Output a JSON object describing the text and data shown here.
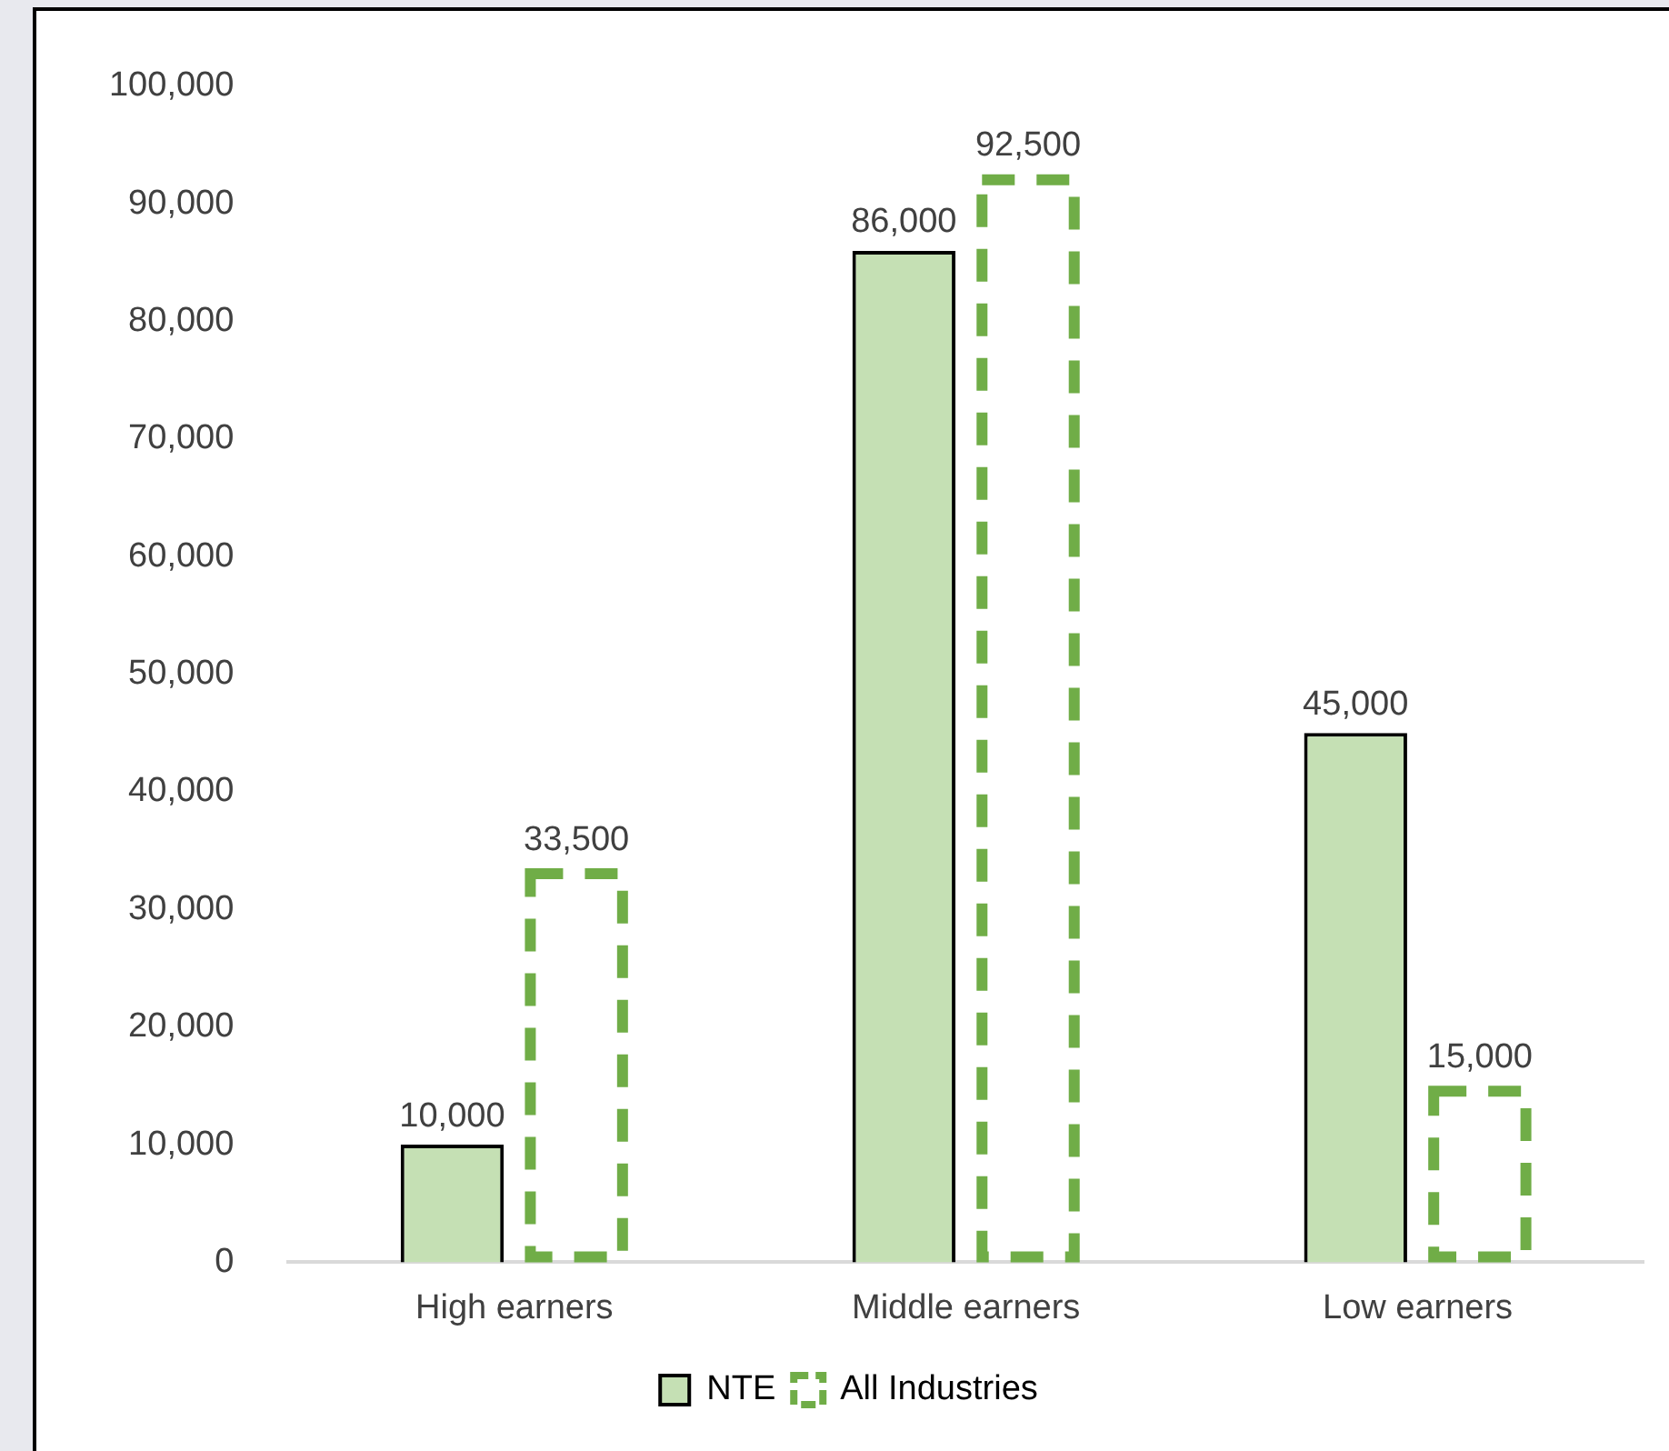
{
  "chart_data": {
    "type": "bar",
    "categories": [
      "High earners",
      "Middle earners",
      "Low earners"
    ],
    "series": [
      {
        "name": "NTE",
        "color": "#c5e0b4",
        "values": [
          10000,
          86000,
          45000
        ],
        "value_labels": [
          "10,000",
          "86,000",
          "45,000"
        ]
      },
      {
        "name": "All Industries",
        "color": "#70ad47",
        "values": [
          33500,
          92500,
          15000
        ],
        "value_labels": [
          "33,500",
          "92,500",
          "15,000"
        ],
        "line_style": "dashed"
      }
    ],
    "ylim": [
      0,
      100000
    ],
    "yticks": [
      0,
      {
        "value": 10000,
        "label": "10,000"
      },
      {
        "value": 20000,
        "label": "20,000"
      },
      {
        "value": 30000,
        "label": "30,000"
      },
      {
        "value": 40000,
        "label": "40,000"
      },
      {
        "value": 50000,
        "label": "50,000"
      },
      {
        "value": 60000,
        "label": "60,000"
      },
      {
        "value": 70000,
        "label": "70,000"
      },
      {
        "value": 80000,
        "label": "80,000"
      },
      {
        "value": 90000,
        "label": "90,000"
      },
      {
        "value": 100000,
        "label": "100,000"
      }
    ],
    "grid": false,
    "legend": "bottom"
  }
}
